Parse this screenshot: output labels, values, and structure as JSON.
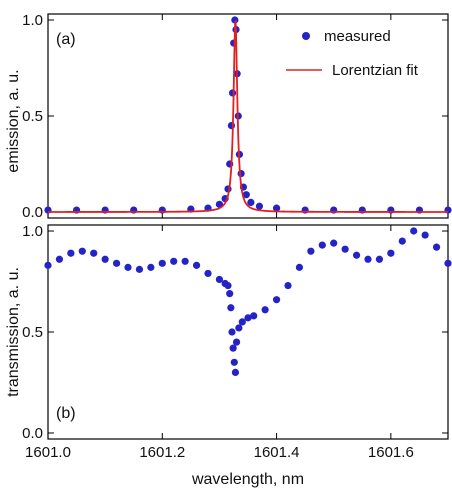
{
  "chart_data": [
    {
      "type": "scatter",
      "panel_label": "(a)",
      "ylabel": "emission, a. u.",
      "xlabel": "",
      "xlim": [
        1601.0,
        1601.7
      ],
      "ylim": [
        0.0,
        1.0
      ],
      "x_ticks": [
        1601.0,
        1601.2,
        1601.4,
        1601.6
      ],
      "y_ticks": [
        0.0,
        0.5,
        1.0
      ],
      "legend_position": "top-right",
      "series": [
        {
          "name": "measured",
          "kind": "points",
          "color": "#2323c8",
          "x": [
            1601.0,
            1601.05,
            1601.1,
            1601.15,
            1601.2,
            1601.25,
            1601.28,
            1601.3,
            1601.31,
            1601.315,
            1601.318,
            1601.321,
            1601.323,
            1601.325,
            1601.327,
            1601.329,
            1601.331,
            1601.333,
            1601.335,
            1601.338,
            1601.342,
            1601.347,
            1601.355,
            1601.37,
            1601.4,
            1601.45,
            1601.5,
            1601.55,
            1601.6,
            1601.65,
            1601.7
          ],
          "y": [
            0.01,
            0.01,
            0.01,
            0.01,
            0.01,
            0.015,
            0.02,
            0.04,
            0.07,
            0.12,
            0.25,
            0.45,
            0.62,
            0.88,
            1.0,
            0.95,
            0.72,
            0.5,
            0.3,
            0.2,
            0.13,
            0.09,
            0.05,
            0.03,
            0.02,
            0.01,
            0.01,
            0.01,
            0.01,
            0.01,
            0.01
          ]
        },
        {
          "name": "Lorentzian fit",
          "kind": "line",
          "color": "#e02020",
          "center": 1601.328,
          "fwhm": 0.008,
          "amplitude": 1.0
        }
      ]
    },
    {
      "type": "scatter",
      "panel_label": "(b)",
      "ylabel": "transmission, a. u.",
      "xlabel": "wavelength, nm",
      "xlim": [
        1601.0,
        1601.7
      ],
      "ylim": [
        0.0,
        1.0
      ],
      "x_ticks": [
        1601.0,
        1601.2,
        1601.4,
        1601.6
      ],
      "y_ticks": [
        0.0,
        0.5,
        1.0
      ],
      "series": [
        {
          "name": "",
          "kind": "points",
          "color": "#2323c8",
          "x": [
            1601.0,
            1601.02,
            1601.04,
            1601.06,
            1601.08,
            1601.1,
            1601.12,
            1601.14,
            1601.16,
            1601.18,
            1601.2,
            1601.22,
            1601.24,
            1601.26,
            1601.28,
            1601.3,
            1601.31,
            1601.315,
            1601.318,
            1601.32,
            1601.322,
            1601.324,
            1601.326,
            1601.328,
            1601.33,
            1601.334,
            1601.34,
            1601.35,
            1601.36,
            1601.38,
            1601.4,
            1601.42,
            1601.44,
            1601.46,
            1601.48,
            1601.5,
            1601.52,
            1601.54,
            1601.56,
            1601.58,
            1601.6,
            1601.62,
            1601.64,
            1601.66,
            1601.68,
            1601.7
          ],
          "y": [
            0.83,
            0.86,
            0.89,
            0.9,
            0.89,
            0.86,
            0.84,
            0.82,
            0.81,
            0.82,
            0.84,
            0.85,
            0.85,
            0.83,
            0.79,
            0.76,
            0.74,
            0.73,
            0.69,
            0.62,
            0.5,
            0.42,
            0.35,
            0.3,
            0.45,
            0.52,
            0.55,
            0.57,
            0.58,
            0.61,
            0.66,
            0.73,
            0.82,
            0.9,
            0.93,
            0.94,
            0.91,
            0.88,
            0.86,
            0.86,
            0.89,
            0.95,
            1.0,
            0.98,
            0.92,
            0.84
          ]
        }
      ]
    }
  ]
}
